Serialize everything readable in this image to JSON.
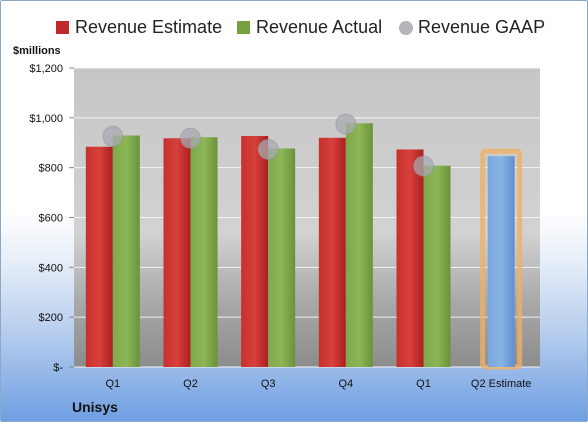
{
  "chart_data": {
    "type": "bar",
    "title": "",
    "ylabel": "$millions",
    "xlabel": "",
    "ylim": [
      0,
      1200
    ],
    "ytick_labels": [
      "$-",
      "$200",
      "$400",
      "$600",
      "$800",
      "$1,000",
      "$1,200"
    ],
    "yticks": [
      0,
      200,
      400,
      600,
      800,
      1000,
      1200
    ],
    "categories": [
      "Q1",
      "Q2",
      "Q3",
      "Q4",
      "Q1",
      "Q2 Estimate"
    ],
    "series": [
      {
        "name": "Revenue Estimate",
        "type": "bar",
        "color": "#c0282b",
        "values": [
          884,
          918,
          927,
          920,
          873,
          null
        ]
      },
      {
        "name": "Revenue Actual",
        "type": "bar",
        "color": "#77a040",
        "values": [
          929,
          922,
          877,
          978,
          808,
          null
        ]
      },
      {
        "name": "Revenue GAAP",
        "type": "scatter",
        "color": "#a8aab0",
        "values": [
          926,
          918,
          873,
          975,
          806,
          null
        ]
      },
      {
        "name": "Q2 Estimate",
        "type": "bar",
        "color": "#7ba7db",
        "highlight": "#f0b065",
        "values": [
          null,
          null,
          null,
          null,
          null,
          846
        ]
      }
    ],
    "legend_position": "top",
    "grid": true,
    "company": "Unisys"
  }
}
